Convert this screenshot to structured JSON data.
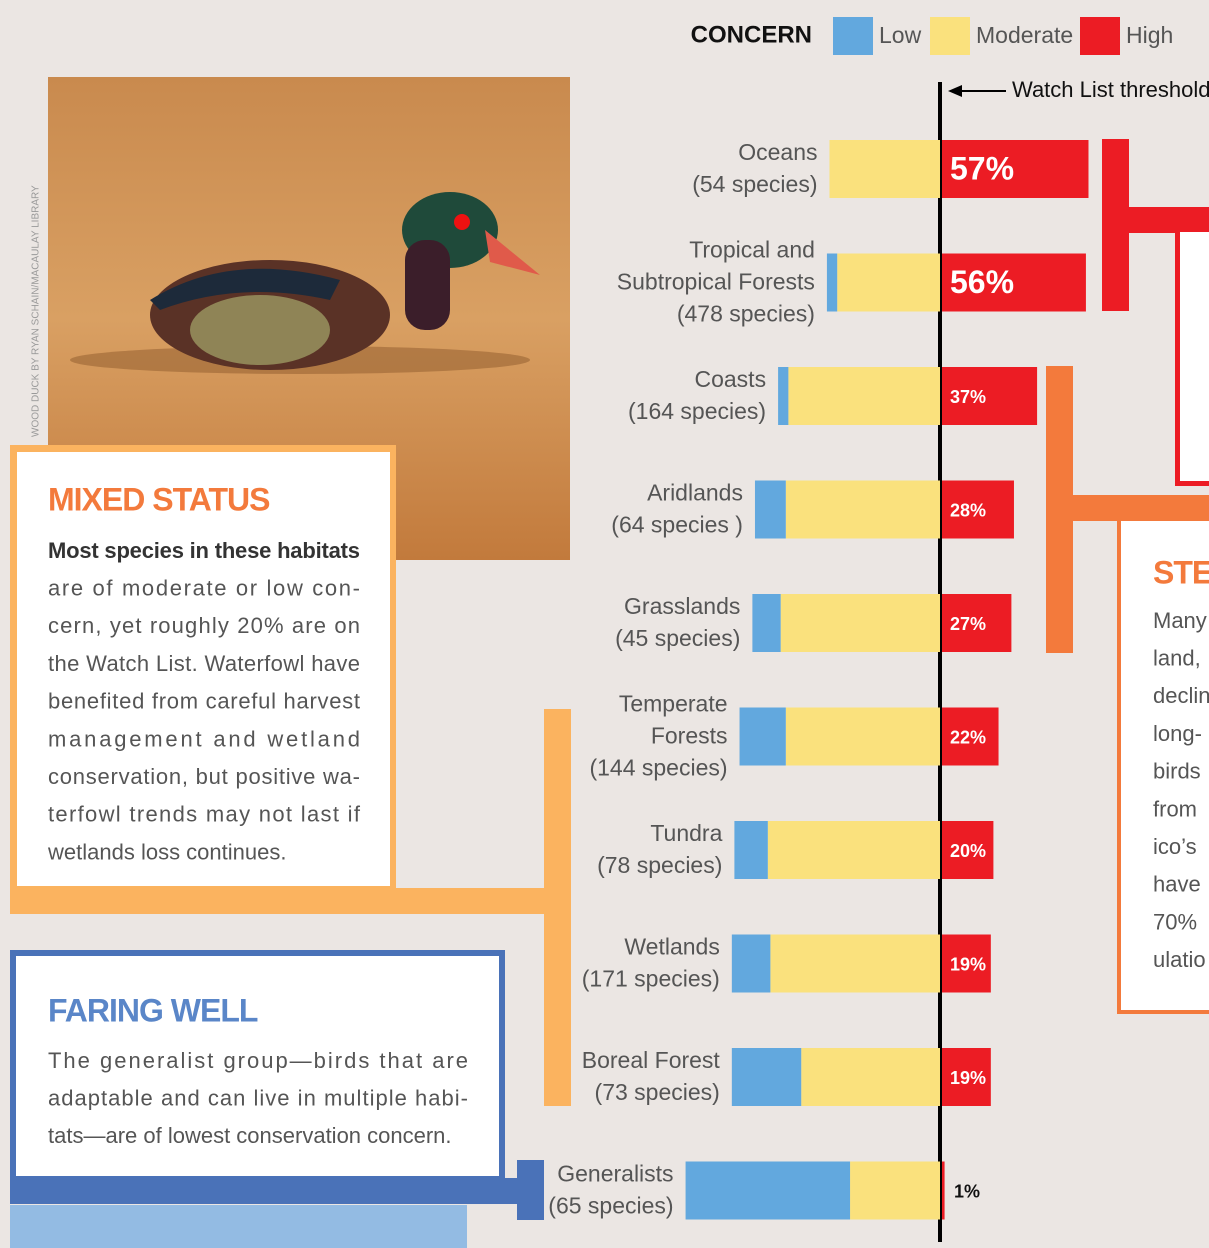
{
  "chart_data": {
    "type": "bar",
    "stacked": true,
    "orientation": "horizontal",
    "legend_title": "CONCERN",
    "threshold_label": "Watch List threshold",
    "categories": [
      [
        "Oceans",
        "(54 species)"
      ],
      [
        "Tropical and",
        "Subtropical Forests",
        "(478 species)"
      ],
      [
        "Coasts",
        "(164 species)"
      ],
      [
        "Aridlands",
        "(64 species )"
      ],
      [
        "Grasslands",
        "(45 species)"
      ],
      [
        "Temperate",
        "Forests",
        "(144 species)"
      ],
      [
        "Tundra",
        "(78 species)"
      ],
      [
        "Wetlands",
        "(171 species)"
      ],
      [
        "Boreal Forest",
        "(73 species)"
      ],
      [
        "Generalists",
        "(65 species)"
      ]
    ],
    "series": [
      {
        "name": "Low",
        "color": "#62a8de",
        "values": [
          0,
          4,
          4,
          12,
          11,
          18,
          13,
          15,
          27,
          64
        ]
      },
      {
        "name": "Moderate",
        "color": "#fae17d",
        "values": [
          43,
          40,
          59,
          60,
          62,
          60,
          67,
          66,
          54,
          35
        ]
      },
      {
        "name": "High",
        "color": "#ec1c24",
        "values": [
          57,
          56,
          37,
          28,
          27,
          22,
          20,
          19,
          19,
          1
        ],
        "value_labels": [
          "57%",
          "56%",
          "37%",
          "28%",
          "27%",
          "22%",
          "20%",
          "19%",
          "19%",
          "1%"
        ]
      }
    ]
  },
  "photo_credit": "Wood Duck by Ryan Schain/Macaulay Library",
  "panels": {
    "mixed": {
      "title": "MIXED STATUS",
      "lines": [
        "Most species in these habitats",
        "are of moderate or low con-",
        "cern, yet roughly 20% are on",
        "the Watch List. Waterfowl have",
        "benefited from careful harvest",
        "management and wetland",
        "conservation, but positive wa-",
        "terfowl trends may not last if",
        "wetlands loss continues."
      ]
    },
    "faring": {
      "title": "FARING WELL",
      "lines": [
        "The generalist group—birds that are",
        "adaptable and can live in multiple habi-",
        "tats—are of lowest conservation concern."
      ]
    },
    "steady": {
      "title": "STE",
      "lines": [
        "Many",
        "land,",
        "declin",
        "long-",
        "birds",
        "from",
        "ico’s",
        "have",
        "70%",
        "ulatio"
      ]
    }
  }
}
